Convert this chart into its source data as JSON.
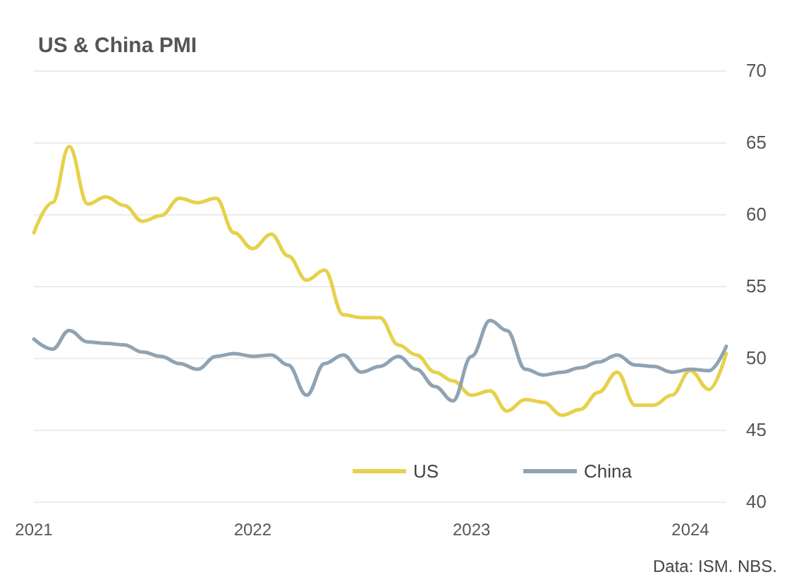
{
  "chart_data": {
    "type": "line",
    "title": "US & China PMI",
    "x": [
      "2021-01",
      "2021-02",
      "2021-03",
      "2021-04",
      "2021-05",
      "2021-06",
      "2021-07",
      "2021-08",
      "2021-09",
      "2021-10",
      "2021-11",
      "2021-12",
      "2022-01",
      "2022-02",
      "2022-03",
      "2022-04",
      "2022-05",
      "2022-06",
      "2022-07",
      "2022-08",
      "2022-09",
      "2022-10",
      "2022-11",
      "2022-12",
      "2023-01",
      "2023-02",
      "2023-03",
      "2023-04",
      "2023-05",
      "2023-06",
      "2023-07",
      "2023-08",
      "2023-09",
      "2023-10",
      "2023-11",
      "2023-12",
      "2024-01",
      "2024-02",
      "2024-03"
    ],
    "series": [
      {
        "name": "US",
        "color": "#e6d14a",
        "values": [
          58.7,
          60.8,
          64.7,
          60.7,
          61.2,
          60.6,
          59.5,
          59.9,
          61.1,
          60.8,
          61.1,
          58.7,
          57.6,
          58.6,
          57.1,
          55.4,
          56.1,
          53.0,
          52.8,
          52.8,
          50.9,
          50.2,
          49.0,
          48.4,
          47.4,
          47.7,
          46.3,
          47.1,
          46.9,
          46.0,
          46.4,
          47.6,
          49.0,
          46.7,
          46.7,
          47.4,
          49.1,
          47.8,
          50.3
        ]
      },
      {
        "name": "China",
        "color": "#8fa3b3",
        "values": [
          51.3,
          50.6,
          51.9,
          51.1,
          51.0,
          50.9,
          50.4,
          50.1,
          49.6,
          49.2,
          50.1,
          50.3,
          50.1,
          50.2,
          49.5,
          47.4,
          49.6,
          50.2,
          49.0,
          49.4,
          50.1,
          49.2,
          48.0,
          47.0,
          50.1,
          52.6,
          51.9,
          49.2,
          48.8,
          49.0,
          49.3,
          49.7,
          50.2,
          49.5,
          49.4,
          49.0,
          49.2,
          49.1,
          50.8
        ]
      }
    ],
    "xlim": [
      "2021-01",
      "2024-03"
    ],
    "xticks": [
      "2021",
      "2022",
      "2023",
      "2024"
    ],
    "ylim": [
      40,
      70
    ],
    "yticks": [
      40,
      45,
      50,
      55,
      60,
      65,
      70
    ],
    "grid": "y",
    "legend": "bottom right",
    "marker": "none",
    "line_style": "solid",
    "annotations": [
      "Data: ISM. NBS."
    ]
  }
}
